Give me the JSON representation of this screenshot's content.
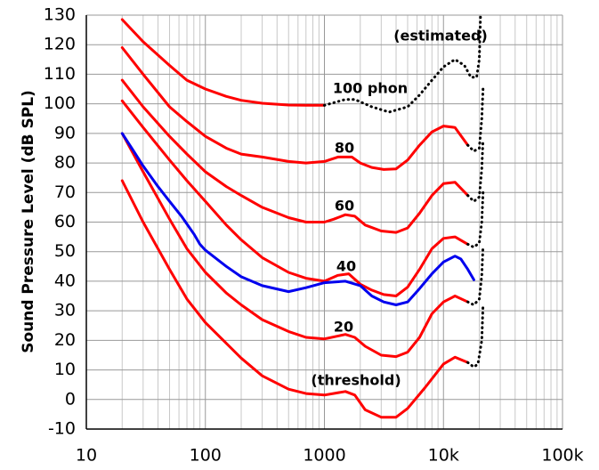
{
  "chart_data": {
    "type": "line",
    "ylabel": "Sound Pressure Level (dB SPL)",
    "xscale": "log",
    "xlim": [
      10,
      100000
    ],
    "ylim": [
      -10,
      130
    ],
    "xticks": [
      10,
      100,
      1000,
      {
        "value": 10000,
        "label": "10k"
      },
      {
        "value": 100000,
        "label": "100k"
      }
    ],
    "xminorticks": [
      20,
      30,
      40,
      50,
      60,
      70,
      80,
      90,
      200,
      300,
      400,
      500,
      600,
      700,
      800,
      900,
      2000,
      3000,
      4000,
      5000,
      6000,
      7000,
      8000,
      9000,
      20000,
      30000,
      40000,
      50000,
      60000,
      70000,
      80000,
      90000
    ],
    "yticks": [
      -10,
      0,
      10,
      20,
      30,
      40,
      50,
      60,
      70,
      80,
      90,
      100,
      110,
      120,
      130
    ],
    "grid": true,
    "annotations": [
      "100 phon",
      "80",
      "60",
      "40",
      "20",
      "(threshold)",
      "(estimated)"
    ],
    "series": [
      {
        "color": "#ff0000",
        "style": "solid",
        "x": [
          20,
          30,
          50,
          70,
          100,
          200,
          300,
          500,
          700,
          1000,
          1500,
          1800,
          2200,
          3000,
          4000,
          5000,
          7000,
          10000,
          12500,
          16000
        ],
        "values": [
          74,
          60,
          44,
          34,
          26,
          14,
          8,
          3.5,
          2,
          1.5,
          2.7,
          1.5,
          -3.5,
          -6,
          -6,
          -3,
          4,
          12,
          14.3,
          12.5
        ]
      },
      {
        "color": "#ff0000",
        "style": "solid",
        "x": [
          20,
          30,
          50,
          70,
          100,
          150,
          200,
          300,
          500,
          700,
          1000,
          1500,
          1800,
          2200,
          3000,
          4000,
          5000,
          6300,
          8000,
          10000,
          12500,
          16000
        ],
        "values": [
          90,
          77,
          61,
          51,
          43,
          36,
          32,
          27,
          23,
          21,
          20.5,
          22,
          21,
          18,
          15,
          14.5,
          16,
          21,
          29,
          33,
          35,
          33
        ]
      },
      {
        "color": "#ff0000",
        "style": "solid",
        "x": [
          20,
          30,
          50,
          70,
          100,
          150,
          200,
          300,
          500,
          700,
          1000,
          1300,
          1600,
          2000,
          2500,
          3150,
          4000,
          5000,
          6300,
          8000,
          10000,
          12500,
          16000
        ],
        "values": [
          101,
          92,
          81,
          74,
          67,
          59,
          54,
          48,
          43,
          41,
          40,
          42,
          42.5,
          39,
          37,
          35.5,
          35,
          38,
          44,
          51,
          54.5,
          55,
          52.5
        ]
      },
      {
        "color": "#ff0000",
        "style": "solid",
        "x": [
          20,
          30,
          50,
          70,
          100,
          150,
          200,
          300,
          500,
          700,
          1000,
          1200,
          1500,
          1800,
          2200,
          3000,
          4000,
          5000,
          6300,
          8000,
          10000,
          12500,
          16000
        ],
        "values": [
          108,
          99,
          89,
          83,
          77,
          72,
          69,
          65,
          61.5,
          60,
          60,
          61,
          62.5,
          62,
          59,
          57,
          56.5,
          58,
          63,
          69,
          73,
          73.5,
          69
        ]
      },
      {
        "color": "#ff0000",
        "style": "solid",
        "x": [
          20,
          30,
          50,
          70,
          100,
          150,
          200,
          300,
          500,
          700,
          1000,
          1300,
          1700,
          2000,
          2500,
          3150,
          4000,
          5000,
          6300,
          8000,
          10000,
          12500,
          16000
        ],
        "values": [
          119,
          110,
          99,
          94,
          89,
          85,
          83,
          82,
          80.5,
          80,
          80.5,
          82,
          82,
          80,
          78.5,
          77.8,
          78,
          81,
          86,
          90.5,
          92.5,
          92,
          86
        ]
      },
      {
        "color": "#ff0000",
        "style": "solid",
        "x": [
          20,
          30,
          50,
          70,
          100,
          150,
          200,
          300,
          500,
          700,
          1000
        ],
        "values": [
          128.5,
          121,
          113,
          108,
          105,
          102.5,
          101.2,
          100.2,
          99.6,
          99.5,
          99.5
        ]
      },
      {
        "color": "#0000ee",
        "style": "solid",
        "x": [
          20,
          25,
          30,
          40,
          50,
          63,
          80,
          90,
          100,
          150,
          200,
          300,
          500,
          700,
          1000,
          1500,
          2000,
          2500,
          3150,
          4000,
          5000,
          6300,
          8000,
          10000,
          12500,
          14000,
          16000,
          18000
        ],
        "values": [
          90,
          84,
          79,
          72,
          67,
          62,
          56,
          52.5,
          50.5,
          45,
          41.5,
          38.5,
          36.5,
          37.8,
          39.5,
          40,
          38.5,
          35,
          33,
          32,
          33,
          37.5,
          42.5,
          46.5,
          48.5,
          47.5,
          44,
          40.5
        ]
      },
      {
        "color": "#000000",
        "style": "dotted",
        "x": [
          1000,
          1500,
          1800,
          2500,
          3500,
          5000,
          6300,
          8000,
          10000,
          12500,
          15000,
          17000,
          19000,
          20000,
          20500
        ],
        "values": [
          99.5,
          101.5,
          101.5,
          99,
          97.2,
          99,
          103,
          108,
          112.5,
          115,
          113,
          109,
          109,
          115,
          130
        ]
      },
      {
        "color": "#000000",
        "style": "dotted",
        "x": [
          16000,
          18000,
          20000,
          21000,
          21500
        ],
        "values": [
          86,
          84,
          85,
          95,
          105
        ]
      },
      {
        "color": "#000000",
        "style": "dotted",
        "x": [
          16000,
          18000,
          20000,
          21000,
          21500
        ],
        "values": [
          69,
          67,
          68.5,
          78,
          88
        ]
      },
      {
        "color": "#000000",
        "style": "dotted",
        "x": [
          16000,
          18000,
          20000,
          21000,
          21500
        ],
        "values": [
          52.5,
          51.5,
          53,
          60,
          70
        ]
      },
      {
        "color": "#000000",
        "style": "dotted",
        "x": [
          16000,
          18000,
          20000,
          21000,
          21500
        ],
        "values": [
          33,
          32,
          34,
          42,
          52
        ]
      },
      {
        "color": "#000000",
        "style": "dotted",
        "x": [
          16000,
          18000,
          19500,
          21000,
          21500
        ],
        "values": [
          12.5,
          11,
          12,
          20,
          32
        ]
      }
    ]
  }
}
